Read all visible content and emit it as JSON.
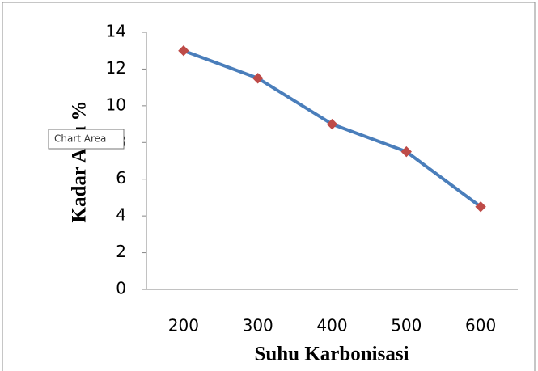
{
  "chart_data": {
    "type": "line",
    "x_label": "Suhu Karbonisasi",
    "y_label": "Kadar Abu %",
    "categories": [
      "200",
      "300",
      "400",
      "500",
      "600"
    ],
    "series": [
      {
        "color": "#4a7ebb",
        "marker_color": "#be4b48",
        "values": [
          13,
          11.5,
          9,
          7.5,
          4.5
        ]
      }
    ],
    "ylim": [
      0,
      14
    ],
    "yticks": [
      0,
      2,
      4,
      6,
      8,
      10,
      12,
      14
    ]
  },
  "tooltip": "Chart Area"
}
